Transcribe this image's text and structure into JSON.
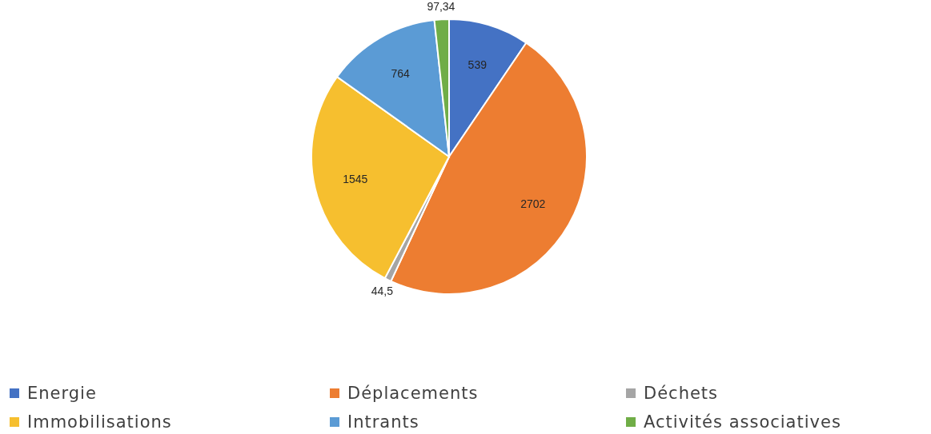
{
  "chart_data": {
    "type": "pie",
    "categories": [
      "Energie",
      "Déplacements",
      "Déchets",
      "Immobilisations",
      "Intrants",
      "Activités associatives"
    ],
    "values": [
      539,
      2702,
      44.5,
      1545,
      764,
      97.34
    ],
    "colors": [
      "#4472c4",
      "#ed7d31",
      "#a5a5a5",
      "#f6bf2f",
      "#5b9bd5",
      "#70ad47"
    ],
    "value_labels": [
      "539",
      "2702",
      "44,5",
      "1545",
      "764",
      "97,34"
    ],
    "legend": "bottom"
  }
}
